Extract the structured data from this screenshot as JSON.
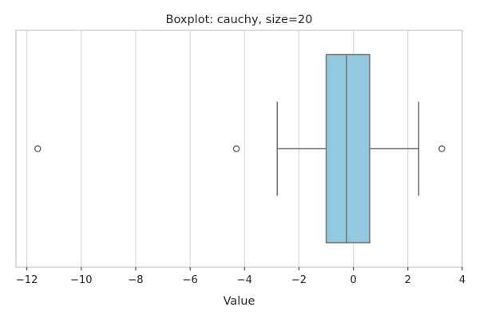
{
  "chart_data": {
    "type": "boxplot",
    "orientation": "horizontal",
    "title": "Boxplot: cauchy, size=20",
    "xlabel": "Value",
    "ylabel": "",
    "xlim": [
      -12.4,
      4.0
    ],
    "xticks": [
      -12,
      -10,
      -8,
      -6,
      -4,
      -2,
      0,
      2,
      4
    ],
    "xtick_labels": [
      "−12",
      "−10",
      "−8",
      "−6",
      "−4",
      "−2",
      "0",
      "2",
      "4"
    ],
    "grid": "x",
    "box": {
      "q1": -1.0,
      "median": -0.25,
      "q3": 0.6,
      "whisker_low": -2.8,
      "whisker_high": 2.4,
      "fill": "#92c8e0",
      "line_color": "#707070"
    },
    "fliers": [
      -11.6,
      -4.3,
      3.25
    ]
  }
}
